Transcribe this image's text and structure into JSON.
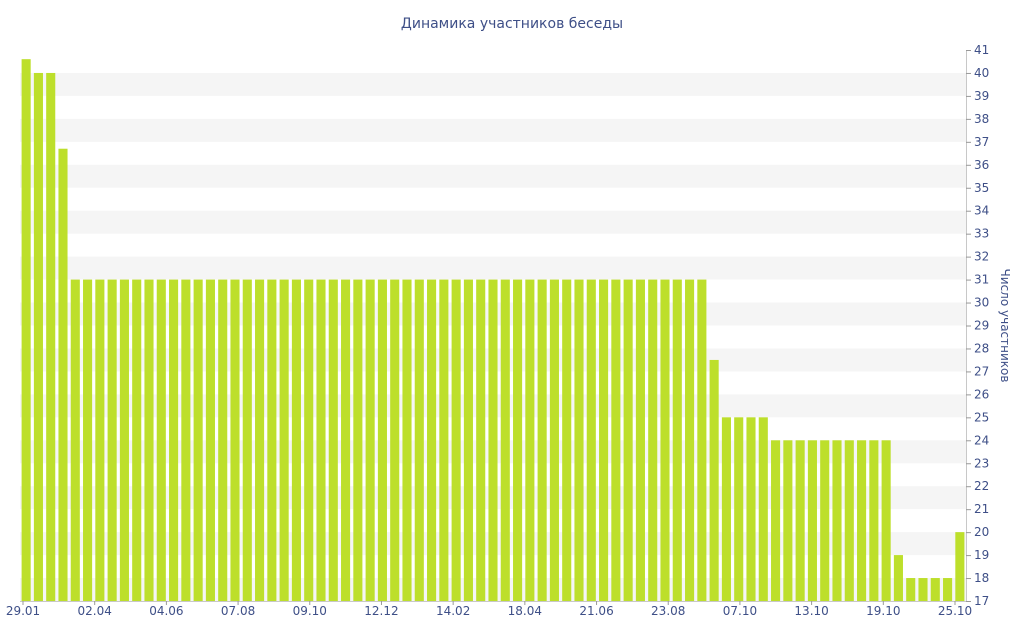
{
  "chart_data": {
    "type": "bar",
    "title": "Динамика участников беседы",
    "ylabel": "Число участников",
    "xlabel": "",
    "ylim": [
      17,
      41
    ],
    "y_ticks": [
      17,
      18,
      19,
      20,
      21,
      22,
      23,
      24,
      25,
      26,
      27,
      28,
      29,
      30,
      31,
      32,
      33,
      34,
      35,
      36,
      37,
      38,
      39,
      40,
      41
    ],
    "y_axis_position": "right",
    "grid": "horizontal bands",
    "legend": "none",
    "bar_color": "#bddf2b",
    "band_color": "#f5f5f5",
    "text_color": "#3e4f87",
    "x_tick_labels": [
      "29.01",
      "02.04",
      "04.06",
      "07.08",
      "09.10",
      "12.12",
      "14.02",
      "18.04",
      "21.06",
      "23.08",
      "07.10",
      "13.10",
      "19.10",
      "25.10"
    ],
    "values": [
      40.6,
      40,
      40,
      36.7,
      31,
      31,
      31,
      31,
      31,
      31,
      31,
      31,
      31,
      31,
      31,
      31,
      31,
      31,
      31,
      31,
      31,
      31,
      31,
      31,
      31,
      31,
      31,
      31,
      31,
      31,
      31,
      31,
      31,
      31,
      31,
      31,
      31,
      31,
      31,
      31,
      31,
      31,
      31,
      31,
      31,
      31,
      31,
      31,
      31,
      31,
      31,
      31,
      31,
      31,
      31,
      31,
      27.5,
      25,
      25,
      25,
      25,
      24,
      24,
      24,
      24,
      24,
      24,
      24,
      24,
      24,
      24,
      19,
      18,
      18,
      18,
      18,
      20
    ]
  }
}
